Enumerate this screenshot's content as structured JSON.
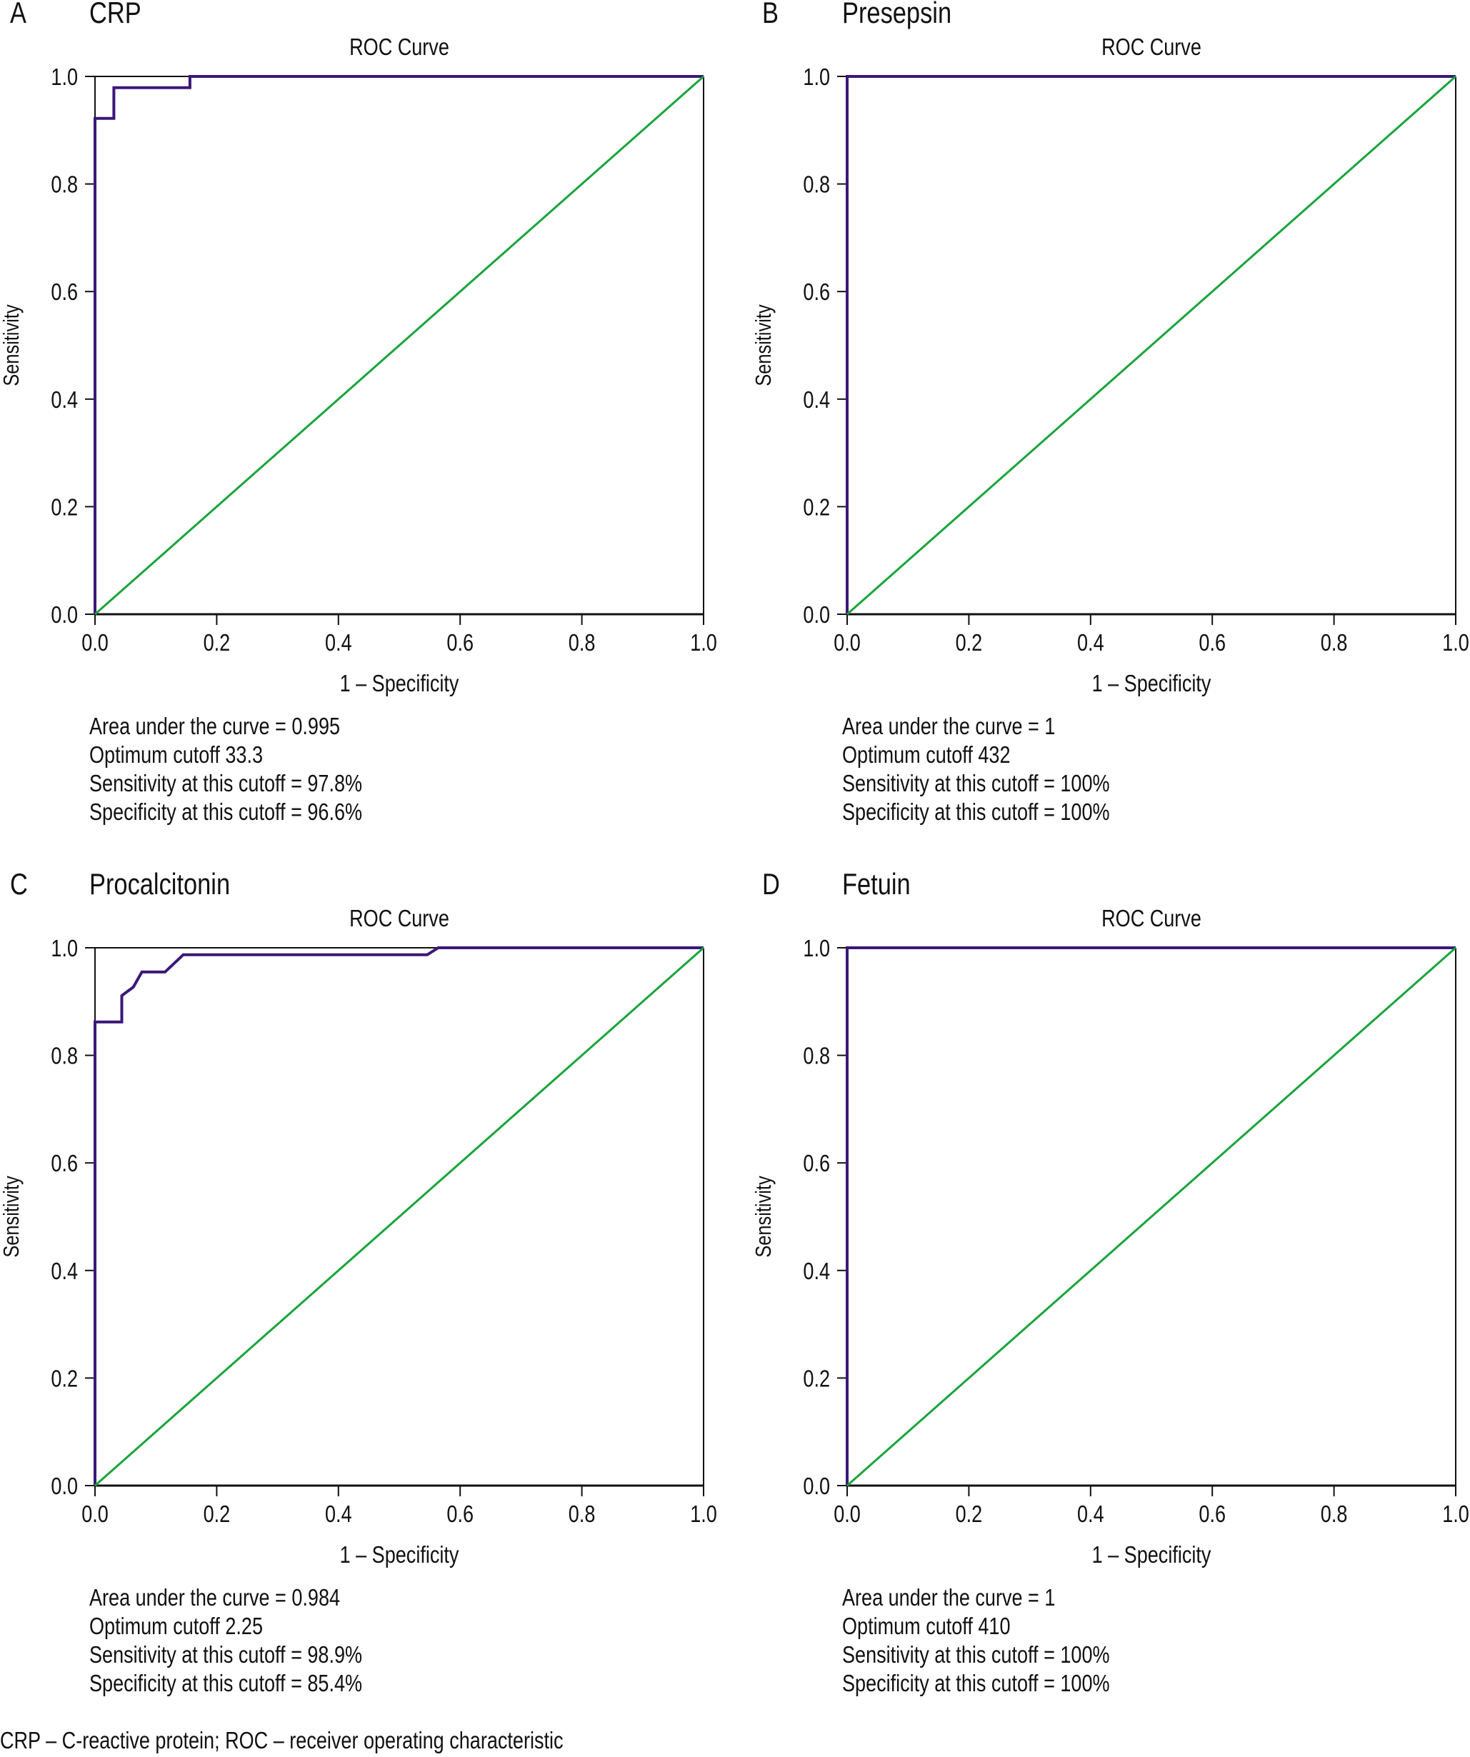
{
  "colors": {
    "roc_curve": "#3b1878",
    "reference_line": "#19a33b",
    "axis": "#111111"
  },
  "footnote": "CRP – C-reactive protein; ROC – receiver operating characteristic",
  "chart_data": [
    {
      "type": "line",
      "panel_letter": "A",
      "panel_title": "CRP",
      "title": "ROC Curve",
      "xlabel": "1 – Specificity",
      "ylabel": "Sensitivity",
      "xlim": [
        0,
        1
      ],
      "ylim": [
        0,
        1
      ],
      "xticks": [
        "0.0",
        "0.2",
        "0.4",
        "0.6",
        "0.8",
        "1.0"
      ],
      "yticks": [
        "0.0",
        "0.2",
        "0.4",
        "0.6",
        "0.8",
        "1.0"
      ],
      "grid": false,
      "series": [
        {
          "name": "ROC",
          "x": [
            0.0,
            0.0,
            0.031,
            0.031,
            0.156,
            0.156,
            1.0
          ],
          "y": [
            0.0,
            0.922,
            0.922,
            0.979,
            0.979,
            1.0,
            1.0
          ]
        },
        {
          "name": "Reference line",
          "x": [
            0,
            1
          ],
          "y": [
            0,
            1
          ]
        }
      ],
      "stats": [
        "Area under the curve = 0.995",
        "Optimum cutoff 33.3",
        "Sensitivity at this cutoff = 97.8%",
        "Specificity at this cutoff = 96.6%"
      ]
    },
    {
      "type": "line",
      "panel_letter": "B",
      "panel_title": "Presepsin",
      "title": "ROC Curve",
      "xlabel": "1 – Specificity",
      "ylabel": "Sensitivity",
      "xlim": [
        0,
        1
      ],
      "ylim": [
        0,
        1
      ],
      "xticks": [
        "0.0",
        "0.2",
        "0.4",
        "0.6",
        "0.8",
        "1.0"
      ],
      "yticks": [
        "0.0",
        "0.2",
        "0.4",
        "0.6",
        "0.8",
        "1.0"
      ],
      "grid": false,
      "series": [
        {
          "name": "ROC",
          "x": [
            0.0,
            0.0,
            1.0
          ],
          "y": [
            0.0,
            1.0,
            1.0
          ]
        },
        {
          "name": "Reference line",
          "x": [
            0,
            1
          ],
          "y": [
            0,
            1
          ]
        }
      ],
      "stats": [
        "Area under the curve = 1",
        "Optimum cutoff 432",
        "Sensitivity at this cutoff = 100%",
        "Specificity at this cutoff = 100%"
      ]
    },
    {
      "type": "line",
      "panel_letter": "C",
      "panel_title": "Procalcitonin",
      "title": "ROC Curve",
      "xlabel": "1 – Specificity",
      "ylabel": "Sensitivity",
      "xlim": [
        0,
        1
      ],
      "ylim": [
        0,
        1
      ],
      "xticks": [
        "0.0",
        "0.2",
        "0.4",
        "0.6",
        "0.8",
        "1.0"
      ],
      "yticks": [
        "0.0",
        "0.2",
        "0.4",
        "0.6",
        "0.8",
        "1.0"
      ],
      "grid": false,
      "series": [
        {
          "name": "ROC",
          "x": [
            0.0,
            0.0,
            0.044,
            0.044,
            0.063,
            0.077,
            0.115,
            0.145,
            0.546,
            0.564,
            1.0
          ],
          "y": [
            0.0,
            0.862,
            0.862,
            0.911,
            0.927,
            0.955,
            0.955,
            0.987,
            0.987,
            1.0,
            1.0
          ]
        },
        {
          "name": "Reference line",
          "x": [
            0,
            1
          ],
          "y": [
            0,
            1
          ]
        }
      ],
      "stats": [
        "Area under the curve = 0.984",
        "Optimum cutoff 2.25",
        "Sensitivity at this cutoff = 98.9%",
        "Specificity at this cutoff = 85.4%"
      ]
    },
    {
      "type": "line",
      "panel_letter": "D",
      "panel_title": "Fetuin",
      "title": "ROC Curve",
      "xlabel": "1 – Specificity",
      "ylabel": "Sensitivity",
      "xlim": [
        0,
        1
      ],
      "ylim": [
        0,
        1
      ],
      "xticks": [
        "0.0",
        "0.2",
        "0.4",
        "0.6",
        "0.8",
        "1.0"
      ],
      "yticks": [
        "0.0",
        "0.2",
        "0.4",
        "0.6",
        "0.8",
        "1.0"
      ],
      "grid": false,
      "series": [
        {
          "name": "ROC",
          "x": [
            0.0,
            0.0,
            1.0
          ],
          "y": [
            0.0,
            1.0,
            1.0
          ]
        },
        {
          "name": "Reference line",
          "x": [
            0,
            1
          ],
          "y": [
            0,
            1
          ]
        }
      ],
      "stats": [
        "Area under the curve = 1",
        "Optimum cutoff 410",
        "Sensitivity at this cutoff = 100%",
        "Specificity at this cutoff = 100%"
      ]
    }
  ]
}
